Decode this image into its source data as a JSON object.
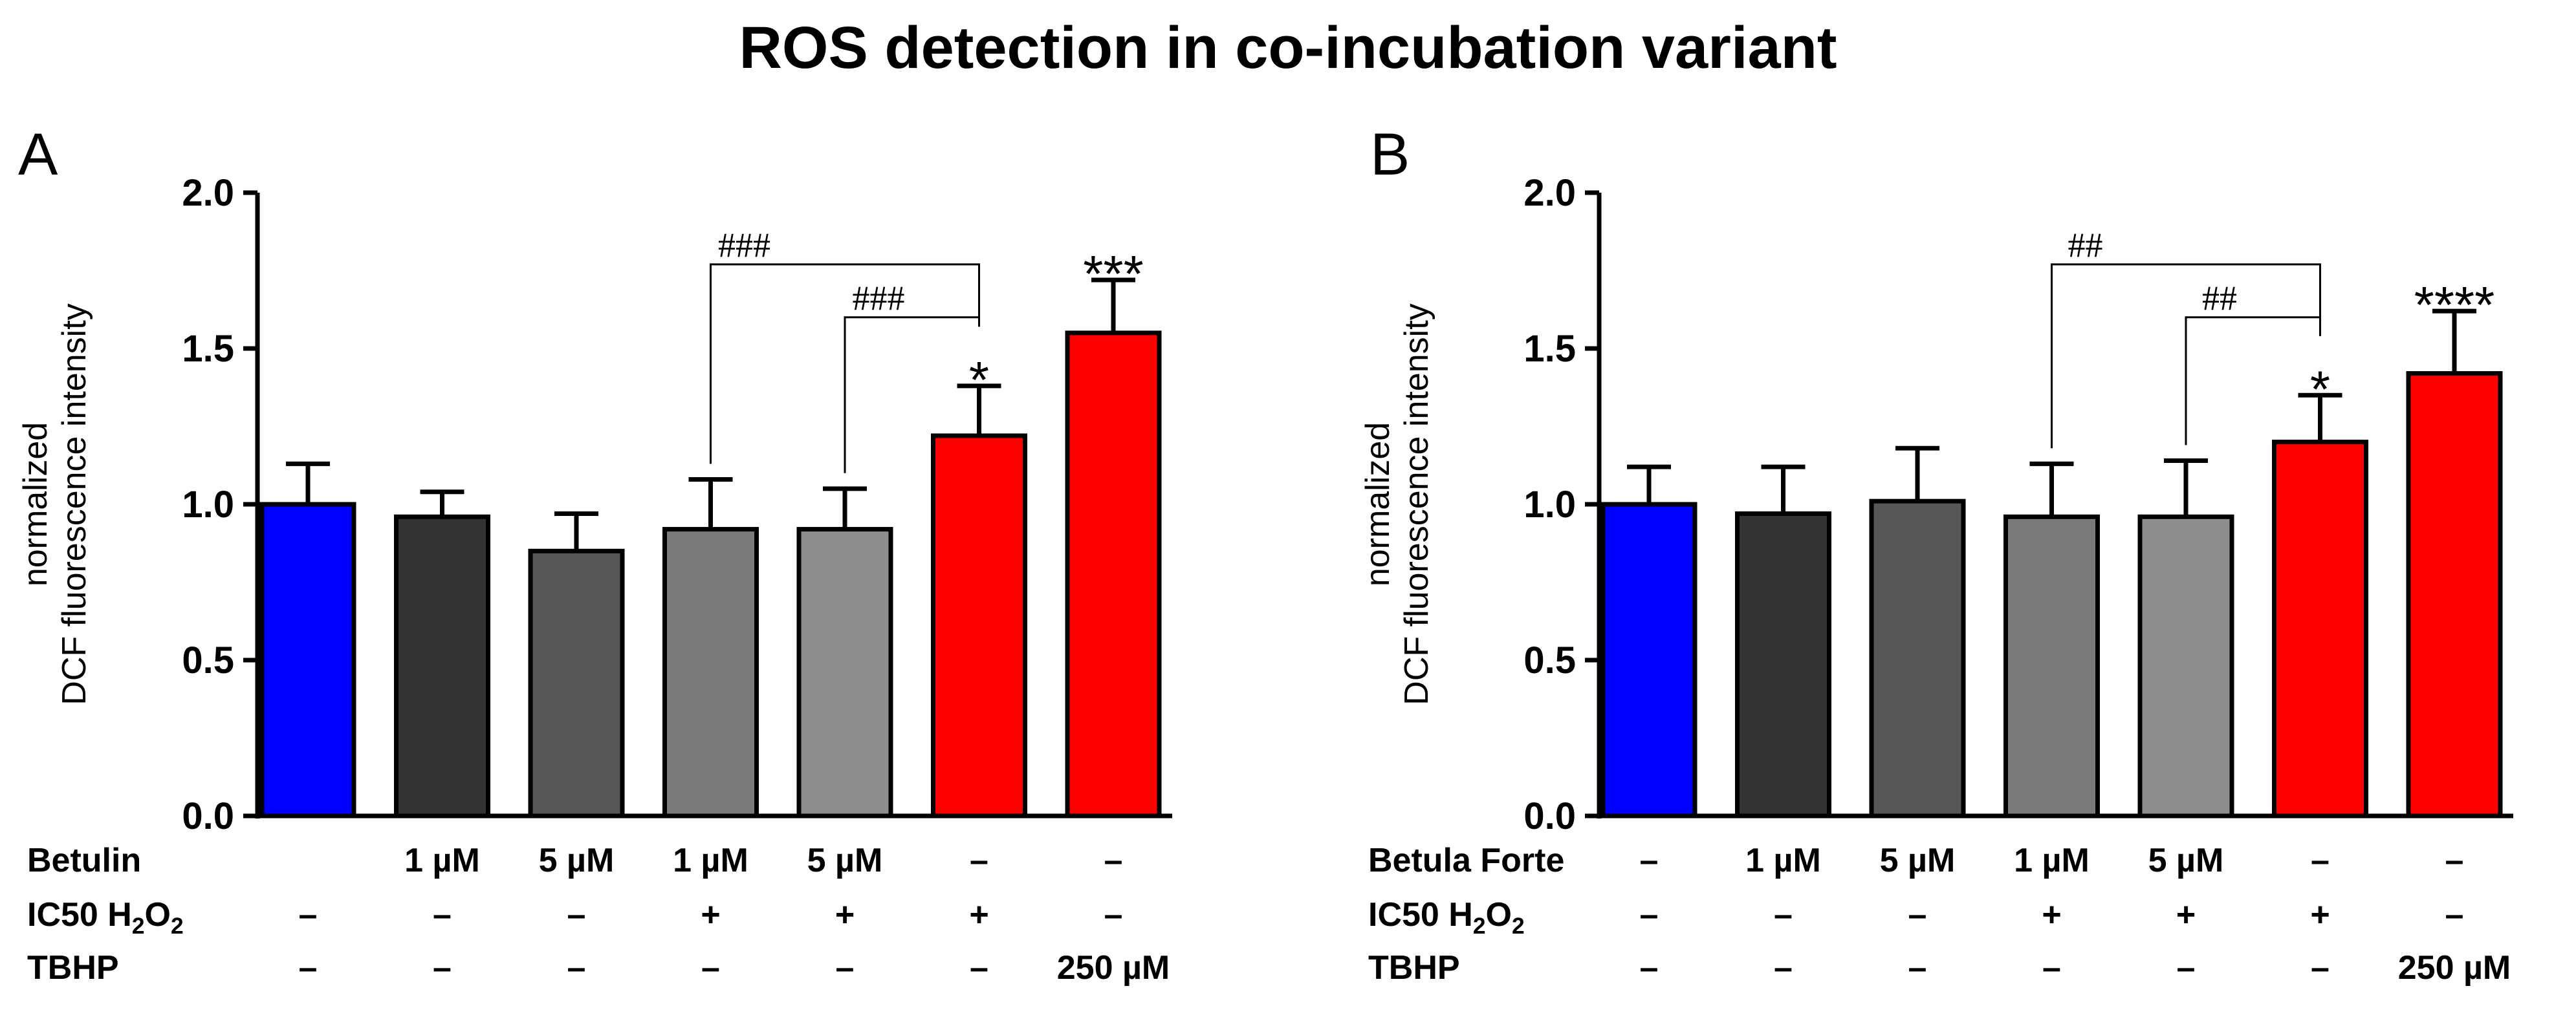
{
  "title": "ROS detection in co-incubation variant",
  "colors": {
    "control": "#0000ff",
    "dark1": "#333333",
    "dark2": "#575757",
    "mid1": "#7a7a7a",
    "mid2": "#8e8e8e",
    "positive": "#ff0000",
    "axis": "#000000"
  },
  "chart_data": [
    {
      "type": "bar",
      "panel_label": "A",
      "ylabel": [
        "normalized",
        "DCF fluorescence intensity"
      ],
      "ylim": [
        0,
        2.0
      ],
      "yticks": [
        "0.0",
        "0.5",
        "1.0",
        "1.5",
        "2.0"
      ],
      "series": [
        {
          "values": [
            1.0,
            0.96,
            0.85,
            0.92,
            0.92,
            1.22,
            1.55
          ],
          "errors": [
            0.13,
            0.08,
            0.12,
            0.16,
            0.13,
            0.16,
            0.17
          ],
          "colors": [
            "#0000ff",
            "#333333",
            "#575757",
            "#7a7a7a",
            "#8e8e8e",
            "#ff0000",
            "#ff0000"
          ]
        }
      ],
      "row_labels": [
        "Betulin",
        "IC50 H2O2",
        "TBHP"
      ],
      "rows": [
        [
          "",
          "1 µM",
          "5 µM",
          "1 µM",
          "5 µM",
          "–",
          "–"
        ],
        [
          "–",
          "–",
          "–",
          "+",
          "+",
          "+",
          "–"
        ],
        [
          "–",
          "–",
          "–",
          "–",
          "–",
          "–",
          "250 µM"
        ]
      ],
      "annotations": [
        {
          "bar": 5,
          "text": "*"
        },
        {
          "bar": 6,
          "text": "***"
        }
      ],
      "brackets": [
        {
          "from": 3,
          "to": 5,
          "text": "###",
          "level": 1.77
        },
        {
          "from": 4,
          "to": 5,
          "text": "###",
          "level": 1.6
        }
      ]
    },
    {
      "type": "bar",
      "panel_label": "B",
      "ylabel": [
        "normalized",
        "DCF fluorescence intensity"
      ],
      "ylim": [
        0,
        2.0
      ],
      "yticks": [
        "0.0",
        "0.5",
        "1.0",
        "1.5",
        "2.0"
      ],
      "series": [
        {
          "values": [
            1.0,
            0.97,
            1.01,
            0.96,
            0.96,
            1.2,
            1.42
          ],
          "errors": [
            0.12,
            0.15,
            0.17,
            0.17,
            0.18,
            0.15,
            0.2
          ],
          "colors": [
            "#0000ff",
            "#333333",
            "#575757",
            "#7a7a7a",
            "#8e8e8e",
            "#ff0000",
            "#ff0000"
          ]
        }
      ],
      "row_labels": [
        "Betula Forte",
        "IC50 H2O2",
        "TBHP"
      ],
      "rows": [
        [
          "–",
          "1 µM",
          "5 µM",
          "1 µM",
          "5 µM",
          "–",
          "–"
        ],
        [
          "–",
          "–",
          "–",
          "+",
          "+",
          "+",
          "–"
        ],
        [
          "–",
          "–",
          "–",
          "–",
          "–",
          "–",
          "250 µM"
        ]
      ],
      "annotations": [
        {
          "bar": 5,
          "text": "*"
        },
        {
          "bar": 6,
          "text": "****"
        }
      ],
      "brackets": [
        {
          "from": 3,
          "to": 5,
          "text": "##",
          "level": 1.77
        },
        {
          "from": 4,
          "to": 5,
          "text": "##",
          "level": 1.6
        }
      ]
    }
  ]
}
